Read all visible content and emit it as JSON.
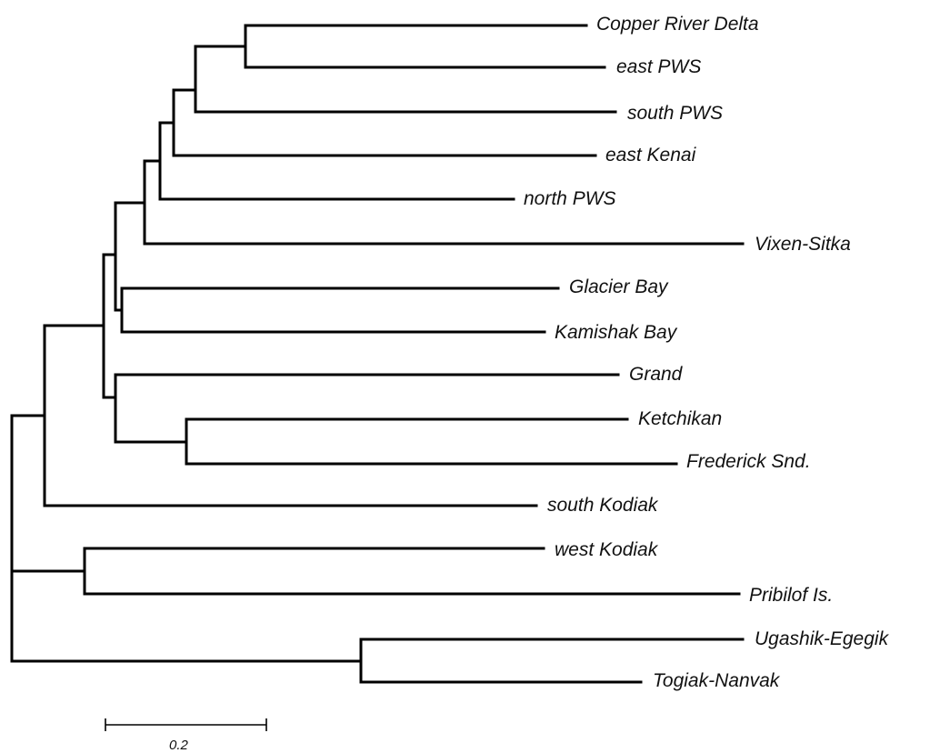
{
  "tree": {
    "leaves": [
      "Copper River Delta",
      "east PWS",
      "south PWS",
      "east Kenai",
      "north PWS",
      "Vixen-Sitka",
      "Glacier Bay",
      "Kamishak Bay",
      "Grand",
      "Ketchikan",
      "Frederick Snd.",
      "south Kodiak",
      "west Kodiak",
      "Pribilof Is.",
      "Ugashik-Egegik",
      "Togiak-Nanvak"
    ]
  },
  "scale_bar": {
    "label": "0.2",
    "value": 0.2
  }
}
